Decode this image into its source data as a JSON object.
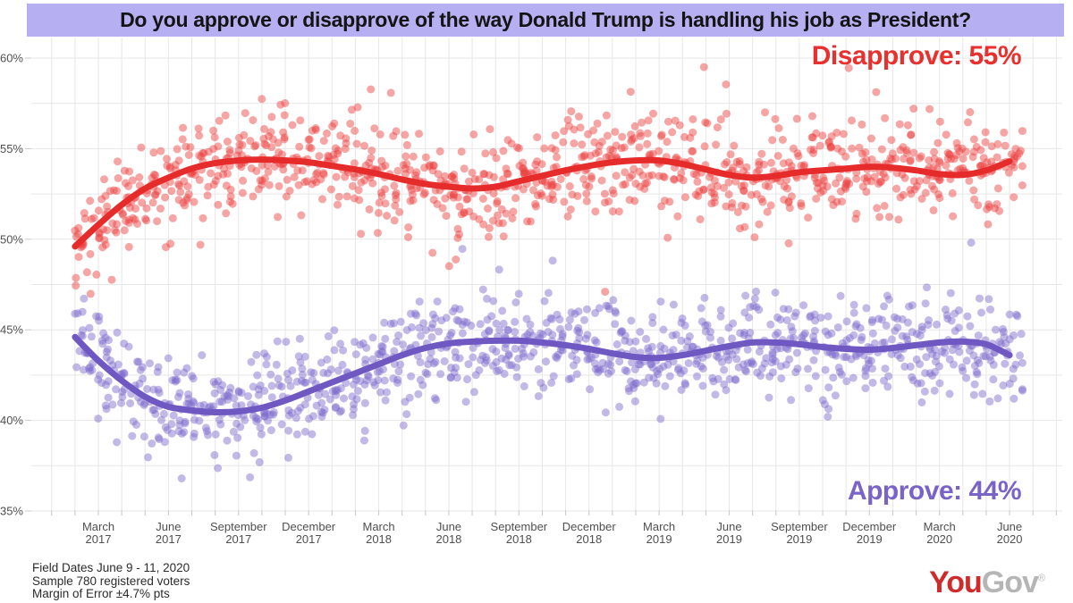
{
  "title": "Do you approve or disapprove of the way Donald Trump is handling his job as President?",
  "annotations": {
    "disapprove_label": "Disapprove: 55%",
    "approve_label": "Approve: 44%"
  },
  "footer": {
    "lines": [
      "Field Dates June 9 - 11, 2020",
      "Sample 780 registered voters",
      "Margin of Error ±4.7% pts"
    ]
  },
  "logo": {
    "part1": "You",
    "part2": "Gov",
    "registered": "®"
  },
  "colors": {
    "title_bg": "#b6aff1",
    "disapprove_line": "#e62b2b",
    "disapprove_point": "#ed4242",
    "disapprove_label": "#e8302e",
    "approve_line": "#6f58c1",
    "approve_point": "#7f6ccc",
    "approve_label": "#7a63c8",
    "grid": "#e7e7e7",
    "tick": "#c9c9c9",
    "axis_text": "#4f4f4f",
    "logo_you": "#cf2b2b",
    "logo_gov": "#b5b5b5"
  },
  "chart_data": {
    "type": "scatter",
    "title": "Do you approve or disapprove of the way Donald Trump is handling his job as President?",
    "xlabel": "",
    "ylabel": "",
    "ylim": [
      35,
      60
    ],
    "y_ticks": [
      35,
      40,
      45,
      50,
      55,
      60
    ],
    "y_tick_suffix": "%",
    "y_minor_step": 2.5,
    "grid": true,
    "legend_position": "inline-annotations",
    "x_start_month": "2017-02",
    "x_end_month": "2020-06",
    "x_tick_labels": [
      {
        "month": "March",
        "year": "2017"
      },
      {
        "month": "June",
        "year": "2017"
      },
      {
        "month": "September",
        "year": "2017"
      },
      {
        "month": "December",
        "year": "2017"
      },
      {
        "month": "March",
        "year": "2018"
      },
      {
        "month": "June",
        "year": "2018"
      },
      {
        "month": "September",
        "year": "2018"
      },
      {
        "month": "December",
        "year": "2018"
      },
      {
        "month": "March",
        "year": "2019"
      },
      {
        "month": "June",
        "year": "2019"
      },
      {
        "month": "September",
        "year": "2019"
      },
      {
        "month": "December",
        "year": "2019"
      },
      {
        "month": "March",
        "year": "2020"
      },
      {
        "month": "June",
        "year": "2020"
      }
    ],
    "series": [
      {
        "name": "Disapprove",
        "latest_value": 55,
        "trend_monthly": [
          49.6,
          50.8,
          51.9,
          52.8,
          53.4,
          53.9,
          54.2,
          54.35,
          54.4,
          54.35,
          54.25,
          54.05,
          53.85,
          53.6,
          53.3,
          53.05,
          52.9,
          52.8,
          52.9,
          53.2,
          53.5,
          53.8,
          54.05,
          54.25,
          54.35,
          54.35,
          54.15,
          53.85,
          53.55,
          53.4,
          53.5,
          53.7,
          53.8,
          53.9,
          54.0,
          53.95,
          53.8,
          53.6,
          53.55,
          53.8,
          54.3
        ]
      },
      {
        "name": "Approve",
        "latest_value": 44,
        "trend_monthly": [
          44.6,
          43.3,
          42.2,
          41.3,
          40.75,
          40.55,
          40.45,
          40.5,
          40.7,
          41.1,
          41.6,
          42.1,
          42.6,
          43.1,
          43.6,
          44.0,
          44.25,
          44.35,
          44.4,
          44.4,
          44.3,
          44.15,
          43.95,
          43.7,
          43.5,
          43.45,
          43.6,
          43.85,
          44.1,
          44.3,
          44.3,
          44.2,
          44.05,
          43.95,
          43.9,
          44.0,
          44.15,
          44.3,
          44.35,
          44.2,
          43.6
        ]
      }
    ],
    "scatter_style": {
      "points_per_series": 1050,
      "noise_sd_pct": 1.3,
      "outlier_rate": 0.05,
      "outlier_extra_sd_pct": 1.9,
      "point_radius_px": 4.5,
      "point_opacity": 0.48
    }
  }
}
